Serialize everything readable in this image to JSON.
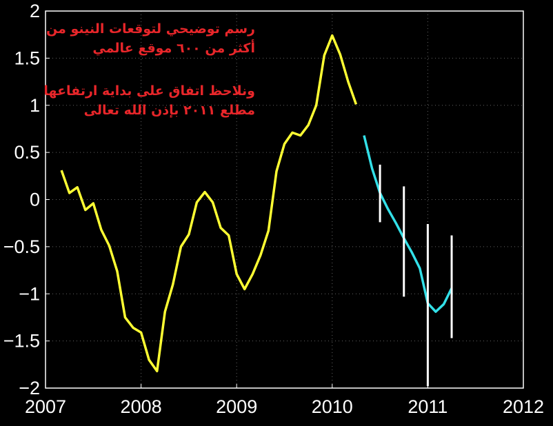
{
  "chart_data": {
    "type": "line",
    "xlim": [
      2007,
      2012
    ],
    "xticks": [
      2007,
      2008,
      2009,
      2010,
      2011,
      2012
    ],
    "ylim": [
      -2,
      2
    ],
    "yticks": [
      {
        "value": -2,
        "label": "−2"
      },
      {
        "value": -1.5,
        "label": "−1.5"
      },
      {
        "value": -1,
        "label": "−1"
      },
      {
        "value": -0.5,
        "label": "−0.5"
      },
      0,
      0.5,
      1,
      1.5,
      2
    ],
    "grid": true,
    "series": [
      {
        "color": "#ffff33",
        "x": [
          2007.167,
          2007.25,
          2007.333,
          2007.417,
          2007.5,
          2007.583,
          2007.667,
          2007.75,
          2007.833,
          2007.917,
          2008.0,
          2008.083,
          2008.167,
          2008.25,
          2008.333,
          2008.417,
          2008.5,
          2008.583,
          2008.667,
          2008.75,
          2008.833,
          2008.917,
          2009.0,
          2009.083,
          2009.167,
          2009.25,
          2009.333,
          2009.417,
          2009.5,
          2009.583,
          2009.667,
          2009.75,
          2009.833,
          2009.917,
          2010.0,
          2010.083,
          2010.167,
          2010.25
        ],
        "values": [
          0.31,
          0.07,
          0.13,
          -0.11,
          -0.04,
          -0.32,
          -0.49,
          -0.76,
          -1.25,
          -1.36,
          -1.41,
          -1.7,
          -1.82,
          -1.19,
          -0.9,
          -0.5,
          -0.37,
          -0.03,
          0.08,
          -0.03,
          -0.3,
          -0.38,
          -0.79,
          -0.95,
          -0.79,
          -0.59,
          -0.33,
          0.3,
          0.59,
          0.71,
          0.68,
          0.79,
          1.0,
          1.53,
          1.74,
          1.54,
          1.25,
          1.01
        ]
      },
      {
        "color": "#33e0e8",
        "x": [
          2010.333,
          2010.417,
          2010.5,
          2010.583,
          2010.667,
          2010.75,
          2010.833,
          2010.917,
          2011.0,
          2011.083,
          2011.167,
          2011.25
        ],
        "values": [
          0.68,
          0.33,
          0.07,
          -0.1,
          -0.25,
          -0.41,
          -0.56,
          -0.73,
          -1.1,
          -1.19,
          -1.11,
          -0.94
        ]
      }
    ],
    "errorbars": {
      "color": "#ffffff",
      "x": [
        2010.5,
        2010.75,
        2011.0,
        2011.25
      ],
      "low": [
        -0.24,
        -1.03,
        -1.98,
        -1.47
      ],
      "high": [
        0.37,
        0.14,
        -0.26,
        -0.38
      ]
    },
    "annotations": [
      "رسم توضيحي لتوقعات النينو من",
      "أكثر من ٦٠٠ موقع عالمي",
      "ونلاحظ اتفاق على بداية ارتفاعها",
      "مطلع ٢٠١١ بإذن الله تعالى"
    ]
  }
}
